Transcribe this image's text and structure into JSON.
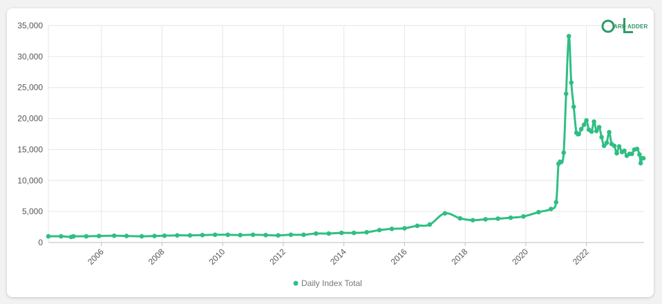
{
  "brand": {
    "logo_text": "ARD ADDER",
    "color": "#2e9a66"
  },
  "chart_data": {
    "type": "line",
    "title": "",
    "xlabel": "",
    "ylabel": "",
    "legend_position": "bottom",
    "grid": true,
    "x_range": [
      2004.25,
      2023.9
    ],
    "ylim": [
      0,
      35000
    ],
    "y_ticks": [
      0,
      5000,
      10000,
      15000,
      20000,
      25000,
      30000,
      35000
    ],
    "y_tick_labels": [
      "0",
      "5,000",
      "10,000",
      "15,000",
      "20,000",
      "25,000",
      "30,000",
      "35,000"
    ],
    "x_ticks": [
      2006,
      2008,
      2010,
      2012,
      2014,
      2016,
      2018,
      2020,
      2022
    ],
    "x_tick_labels": [
      "2006",
      "2008",
      "2010",
      "2012",
      "2014",
      "2016",
      "2018",
      "2020",
      "2022"
    ],
    "series": [
      {
        "name": "Daily Index Total",
        "color": "#2fbe83",
        "x": [
          2004.25,
          2004.67,
          2005.0,
          2005.08,
          2005.5,
          2005.92,
          2006.42,
          2006.83,
          2007.33,
          2007.75,
          2008.08,
          2008.5,
          2008.92,
          2009.33,
          2009.75,
          2010.17,
          2010.58,
          2011.0,
          2011.42,
          2011.83,
          2012.25,
          2012.67,
          2013.08,
          2013.5,
          2013.92,
          2014.33,
          2014.75,
          2015.17,
          2015.58,
          2016.0,
          2016.42,
          2016.83,
          2017.33,
          2017.83,
          2018.25,
          2018.67,
          2019.08,
          2019.5,
          2019.92,
          2020.42,
          2020.83,
          2021.0,
          2021.08,
          2021.17,
          2021.25,
          2021.33,
          2021.42,
          2021.5,
          2021.58,
          2021.67,
          2021.75,
          2021.83,
          2021.92,
          2022.0,
          2022.08,
          2022.17,
          2022.25,
          2022.33,
          2022.42,
          2022.5,
          2022.58,
          2022.67,
          2022.75,
          2022.83,
          2022.92,
          2023.0,
          2023.08,
          2023.17,
          2023.25,
          2023.33,
          2023.42,
          2023.5,
          2023.58,
          2023.67,
          2023.75,
          2023.79,
          2023.83,
          2023.88
        ],
        "values": [
          1000,
          1000,
          900,
          1000,
          1000,
          1050,
          1100,
          1050,
          1000,
          1050,
          1100,
          1150,
          1150,
          1200,
          1250,
          1250,
          1200,
          1250,
          1200,
          1150,
          1250,
          1250,
          1450,
          1450,
          1550,
          1550,
          1650,
          2000,
          2200,
          2300,
          2700,
          2900,
          4700,
          3900,
          3600,
          3750,
          3850,
          4000,
          4200,
          4900,
          5400,
          6500,
          12700,
          13000,
          14500,
          24000,
          33300,
          25800,
          21900,
          17700,
          17500,
          18300,
          19000,
          19700,
          18200,
          17900,
          19500,
          18000,
          18600,
          17000,
          15600,
          16100,
          17800,
          15900,
          15600,
          14400,
          15500,
          14600,
          14800,
          14000,
          14300,
          14300,
          15000,
          15100,
          14200,
          12800,
          13600,
          13600
        ]
      }
    ]
  }
}
